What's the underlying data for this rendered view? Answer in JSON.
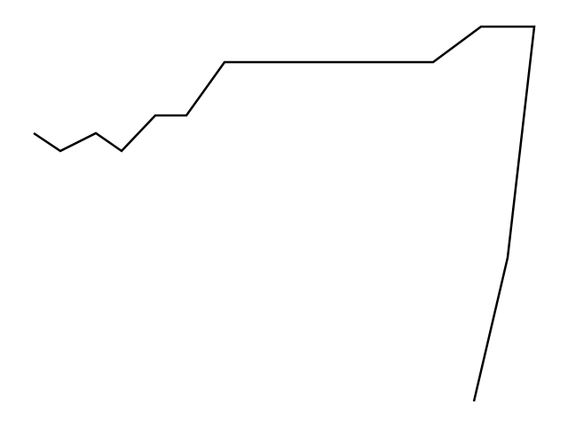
{
  "drawing": {
    "stroke_color": "#000000",
    "background_color": "#ffffff"
  }
}
